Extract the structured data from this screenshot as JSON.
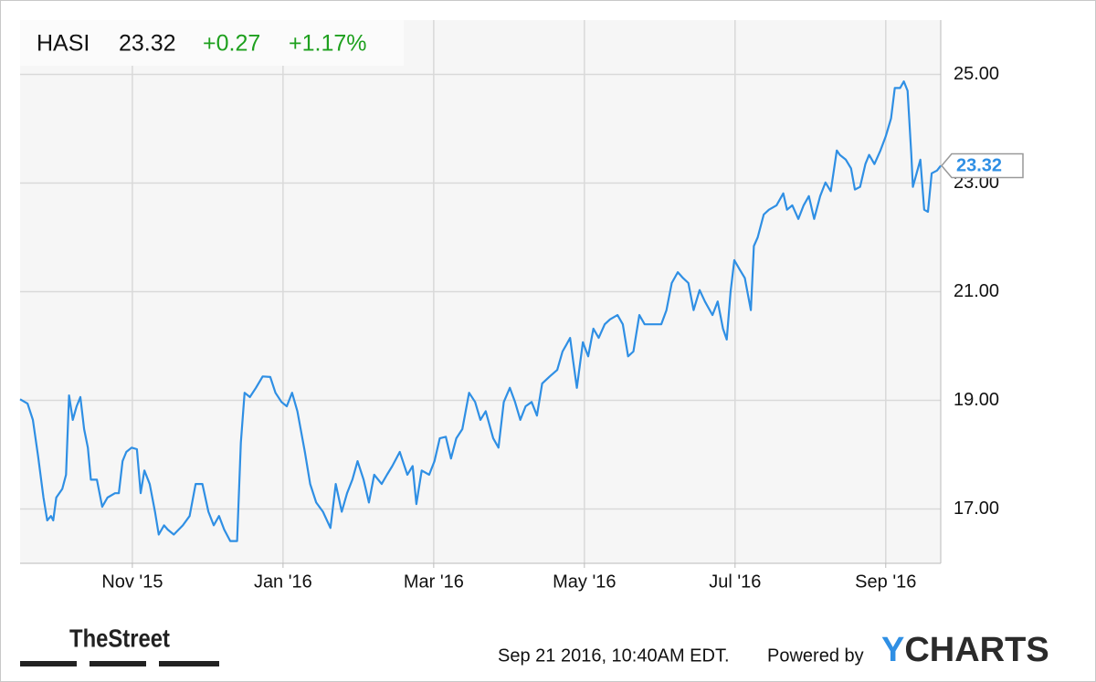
{
  "chart_data": {
    "type": "line",
    "header": {
      "ticker": "HASI",
      "price": "23.32",
      "change": "+0.27",
      "change_pct": "+1.17%"
    },
    "color": "#2f8fe4",
    "x": [
      -1.49,
      -1.39,
      -1.32,
      -1.25,
      -1.18,
      -1.13,
      -1.08,
      -1.05,
      -1.01,
      -0.93,
      -0.88,
      -0.84,
      -0.79,
      -0.74,
      -0.69,
      -0.64,
      -0.59,
      -0.55,
      -0.47,
      -0.4,
      -0.33,
      -0.23,
      -0.18,
      -0.13,
      -0.08,
      -0.01,
      0.06,
      0.11,
      0.16,
      0.23,
      0.3,
      0.35,
      0.42,
      0.47,
      0.55,
      0.67,
      0.76,
      0.84,
      0.93,
      1.01,
      1.08,
      1.15,
      1.22,
      1.3,
      1.39,
      1.44,
      1.49,
      1.56,
      1.64,
      1.73,
      1.83,
      1.9,
      1.98,
      2.05,
      2.12,
      2.19,
      2.29,
      2.36,
      2.44,
      2.53,
      2.63,
      2.7,
      2.78,
      2.85,
      2.92,
      2.99,
      3.07,
      3.14,
      3.21,
      3.31,
      3.38,
      3.45,
      3.55,
      3.65,
      3.72,
      3.77,
      3.84,
      3.94,
      4.01,
      4.08,
      4.16,
      4.23,
      4.3,
      4.38,
      4.47,
      4.55,
      4.62,
      4.69,
      4.79,
      4.86,
      4.93,
      5.01,
      5.08,
      5.15,
      5.22,
      5.3,
      5.37,
      5.44,
      5.54,
      5.64,
      5.71,
      5.76,
      5.81,
      5.85,
      5.9,
      5.98,
      6.05,
      6.12,
      6.19,
      6.27,
      6.34,
      6.44,
      6.51,
      6.58,
      6.65,
      6.73,
      6.8,
      6.87,
      7.02,
      7.09,
      7.16,
      7.24,
      7.31,
      7.38,
      7.45,
      7.53,
      7.6,
      7.7,
      7.77,
      7.84,
      7.89,
      7.94,
      7.99,
      8.06,
      8.13,
      8.21,
      8.25,
      8.3,
      8.38,
      8.45,
      8.55,
      8.64,
      8.69,
      8.76,
      8.84,
      8.91,
      8.98,
      9.05,
      9.13,
      9.2,
      9.27,
      9.35,
      9.39,
      9.47,
      9.54,
      9.59,
      9.66,
      9.73,
      9.78,
      9.85,
      9.93,
      10.0,
      10.07,
      10.12,
      10.19,
      10.24,
      10.29,
      10.34,
      10.36,
      10.41,
      10.46,
      10.51,
      10.56,
      10.61,
      10.68,
      10.73
    ],
    "values": [
      19.02,
      18.94,
      18.64,
      17.96,
      17.21,
      16.79,
      16.87,
      16.79,
      17.21,
      17.37,
      17.63,
      19.09,
      18.64,
      18.89,
      19.06,
      18.47,
      18.13,
      17.54,
      17.54,
      17.04,
      17.21,
      17.29,
      17.29,
      17.88,
      18.05,
      18.13,
      18.1,
      17.29,
      17.71,
      17.46,
      16.95,
      16.53,
      16.7,
      16.62,
      16.53,
      16.7,
      16.87,
      17.46,
      17.46,
      16.95,
      16.7,
      16.87,
      16.62,
      16.41,
      16.41,
      18.22,
      19.14,
      19.06,
      19.23,
      19.44,
      19.43,
      19.14,
      18.97,
      18.89,
      19.14,
      18.8,
      18.05,
      17.46,
      17.12,
      16.95,
      16.65,
      17.46,
      16.95,
      17.29,
      17.54,
      17.88,
      17.54,
      17.12,
      17.63,
      17.46,
      17.63,
      17.79,
      18.05,
      17.63,
      17.79,
      17.09,
      17.71,
      17.63,
      17.88,
      18.3,
      18.33,
      17.93,
      18.3,
      18.47,
      19.14,
      18.97,
      18.64,
      18.8,
      18.3,
      18.13,
      18.97,
      19.23,
      18.97,
      18.64,
      18.89,
      18.97,
      18.72,
      19.31,
      19.44,
      19.56,
      19.9,
      20.02,
      20.15,
      19.73,
      19.23,
      20.07,
      19.81,
      20.32,
      20.15,
      20.4,
      20.49,
      20.57,
      20.4,
      19.81,
      19.9,
      20.57,
      20.4,
      20.4,
      20.4,
      20.66,
      21.16,
      21.36,
      21.25,
      21.16,
      20.66,
      21.03,
      20.82,
      20.57,
      20.82,
      20.32,
      20.12,
      21.0,
      21.58,
      21.41,
      21.25,
      20.66,
      21.84,
      22.0,
      22.42,
      22.51,
      22.59,
      22.81,
      22.51,
      22.59,
      22.34,
      22.59,
      22.76,
      22.34,
      22.76,
      23.01,
      22.85,
      23.6,
      23.52,
      23.43,
      23.27,
      22.88,
      22.93,
      23.35,
      23.52,
      23.35,
      23.6,
      23.86,
      24.19,
      24.75,
      24.75,
      24.87,
      24.7,
      23.52,
      22.93,
      23.18,
      23.43,
      22.51,
      22.47,
      23.18,
      23.23,
      23.32
    ],
    "xlim": [
      -1.49,
      10.73
    ],
    "xticks": [
      {
        "value": 0,
        "label": "Nov '15"
      },
      {
        "value": 2,
        "label": "Jan '16"
      },
      {
        "value": 4,
        "label": "Mar '16"
      },
      {
        "value": 6,
        "label": "May '16"
      },
      {
        "value": 8,
        "label": "Jul '16"
      },
      {
        "value": 10,
        "label": "Sep '16"
      }
    ],
    "ylim": [
      16,
      26
    ],
    "yticks": [
      {
        "value": 17,
        "label": "17.00"
      },
      {
        "value": 19,
        "label": "19.00"
      },
      {
        "value": 21,
        "label": "21.00"
      },
      {
        "value": 23,
        "label": "23.00"
      },
      {
        "value": 25,
        "label": "25.00"
      }
    ],
    "grid": true,
    "footer": {
      "brand": "TheStreet",
      "timestamp": "Sep 21 2016, 10:40AM EDT.",
      "powered": "Powered by",
      "provider": "YCHARTS"
    }
  }
}
